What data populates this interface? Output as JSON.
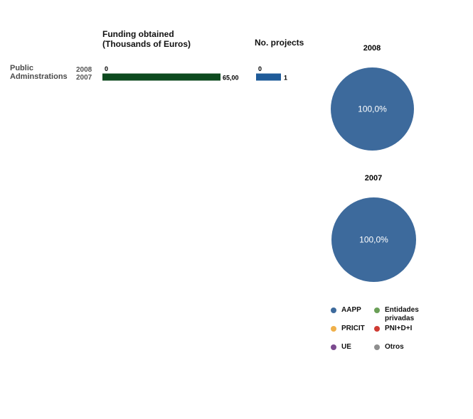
{
  "chart_data": [
    {
      "type": "bar",
      "title": "Funding obtained\n(Thousands of Euros)",
      "categories": [
        "Public\nAdminstrations"
      ],
      "series": [
        {
          "name": "2008",
          "values": [
            0
          ],
          "label": "0"
        },
        {
          "name": "2007",
          "values": [
            65
          ],
          "label": "65,00"
        }
      ],
      "color": "#0d4a1f"
    },
    {
      "type": "bar",
      "title": "No. projects",
      "categories": [
        "Public\nAdminstrations"
      ],
      "series": [
        {
          "name": "2008",
          "values": [
            0
          ],
          "label": "0"
        },
        {
          "name": "2007",
          "values": [
            1
          ],
          "label": "1"
        }
      ],
      "color": "#1f5b99"
    },
    {
      "type": "pie",
      "title": "2008",
      "slices": [
        {
          "name": "AAPP",
          "value": 100,
          "label": "100,0%"
        }
      ]
    },
    {
      "type": "pie",
      "title": "2007",
      "slices": [
        {
          "name": "AAPP",
          "value": 100,
          "label": "100,0%"
        }
      ]
    }
  ],
  "legend": [
    {
      "label": "AAPP",
      "color": "#3d6a9c",
      "icon": "circle-icon"
    },
    {
      "label": "Entidades\nprivadas",
      "color": "#6a9f57",
      "icon": "circle-icon"
    },
    {
      "label": "PRICIT",
      "color": "#f0b04a",
      "icon": "circle-icon"
    },
    {
      "label": "PNI+D+I",
      "color": "#cf3b33",
      "icon": "circle-icon"
    },
    {
      "label": "UE",
      "color": "#7b4a8f",
      "icon": "circle-icon"
    },
    {
      "label": "Otros",
      "color": "#8e8e8e",
      "icon": "circle-icon"
    }
  ],
  "pie_color": "#3d6a9c"
}
